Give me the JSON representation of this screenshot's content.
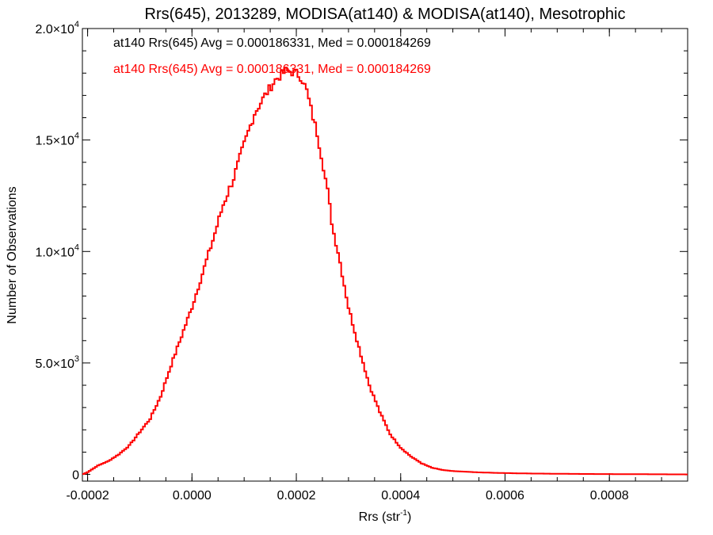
{
  "chart_data": {
    "type": "histogram",
    "title": "Rrs(645), 2013289, MODISA(at140) & MODISA(at140), Mesotrophic",
    "xlabel_base": "Rrs (str",
    "xlabel_sup": "-1",
    "xlabel_close": ")",
    "ylabel": "Number of Observations",
    "xlim": [
      -0.00021,
      0.00095
    ],
    "ylim": [
      -300,
      20000
    ],
    "x_ticks": [
      {
        "value": -0.0002,
        "label": "-0.0002"
      },
      {
        "value": 0.0,
        "label": "0.0000"
      },
      {
        "value": 0.0002,
        "label": "0.0002"
      },
      {
        "value": 0.0004,
        "label": "0.0004"
      },
      {
        "value": 0.0006,
        "label": "0.0006"
      },
      {
        "value": 0.0008,
        "label": "0.0008"
      }
    ],
    "y_ticks": [
      {
        "value": 0,
        "mant": "0",
        "exp": ""
      },
      {
        "value": 5000,
        "mant": "5.0×10",
        "exp": "3"
      },
      {
        "value": 10000,
        "mant": "1.0×10",
        "exp": "4"
      },
      {
        "value": 15000,
        "mant": "1.5×10",
        "exp": "4"
      },
      {
        "value": 20000,
        "mant": "2.0×10",
        "exp": "4"
      }
    ],
    "annotations": [
      {
        "text": "at140 Rrs(645) Avg = 0.000186331, Med = 0.000184269",
        "color": "#000000"
      },
      {
        "text": "at140 Rrs(645) Avg = 0.000186331, Med = 0.000184269",
        "color": "#ff0000"
      }
    ],
    "series": [
      {
        "color": "#ff0000",
        "x": [
          -0.00021,
          -0.0002,
          -0.00018,
          -0.00016,
          -0.00014,
          -0.00012,
          -0.0001,
          -8e-05,
          -6e-05,
          -4e-05,
          -2e-05,
          0.0,
          2e-05,
          4e-05,
          6e-05,
          8e-05,
          0.0001,
          0.00012,
          0.00014,
          0.00016,
          0.00017,
          0.00018,
          0.00019,
          0.0002,
          0.00021,
          0.00022,
          0.00023,
          0.00024,
          0.00025,
          0.00026,
          0.00027,
          0.00028,
          0.0003,
          0.00032,
          0.00034,
          0.00036,
          0.00038,
          0.0004,
          0.00042,
          0.00044,
          0.00046,
          0.00048,
          0.0005,
          0.00055,
          0.0006,
          0.00065,
          0.0007,
          0.00075,
          0.0008,
          0.00085,
          0.0009,
          0.00095
        ],
        "y": [
          0,
          100,
          400,
          600,
          900,
          1300,
          1900,
          2500,
          3500,
          4900,
          6200,
          7500,
          9000,
          10500,
          12100,
          13300,
          14800,
          16200,
          17000,
          17700,
          17900,
          18100,
          18050,
          18000,
          17800,
          17200,
          16200,
          15300,
          14100,
          12700,
          11000,
          10000,
          7500,
          5700,
          4000,
          2800,
          1800,
          1200,
          800,
          500,
          300,
          200,
          150,
          90,
          60,
          40,
          30,
          20,
          15,
          10,
          5,
          0
        ]
      }
    ]
  }
}
